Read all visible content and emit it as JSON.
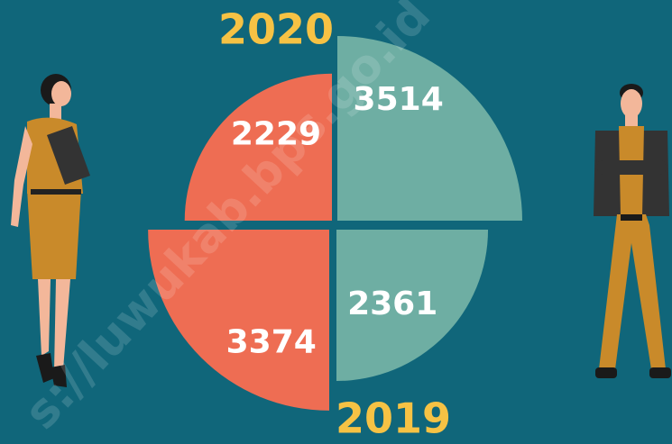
{
  "chart_data": {
    "type": "polar-area",
    "categories": [
      "2020",
      "2019"
    ],
    "series": [
      {
        "color": "#ee6d53",
        "values": [
          2229,
          3374
        ]
      },
      {
        "color": "#6eaea3",
        "values": [
          3514,
          2361
        ]
      }
    ],
    "watermark": "s://luwukab.bps.go.id"
  }
}
